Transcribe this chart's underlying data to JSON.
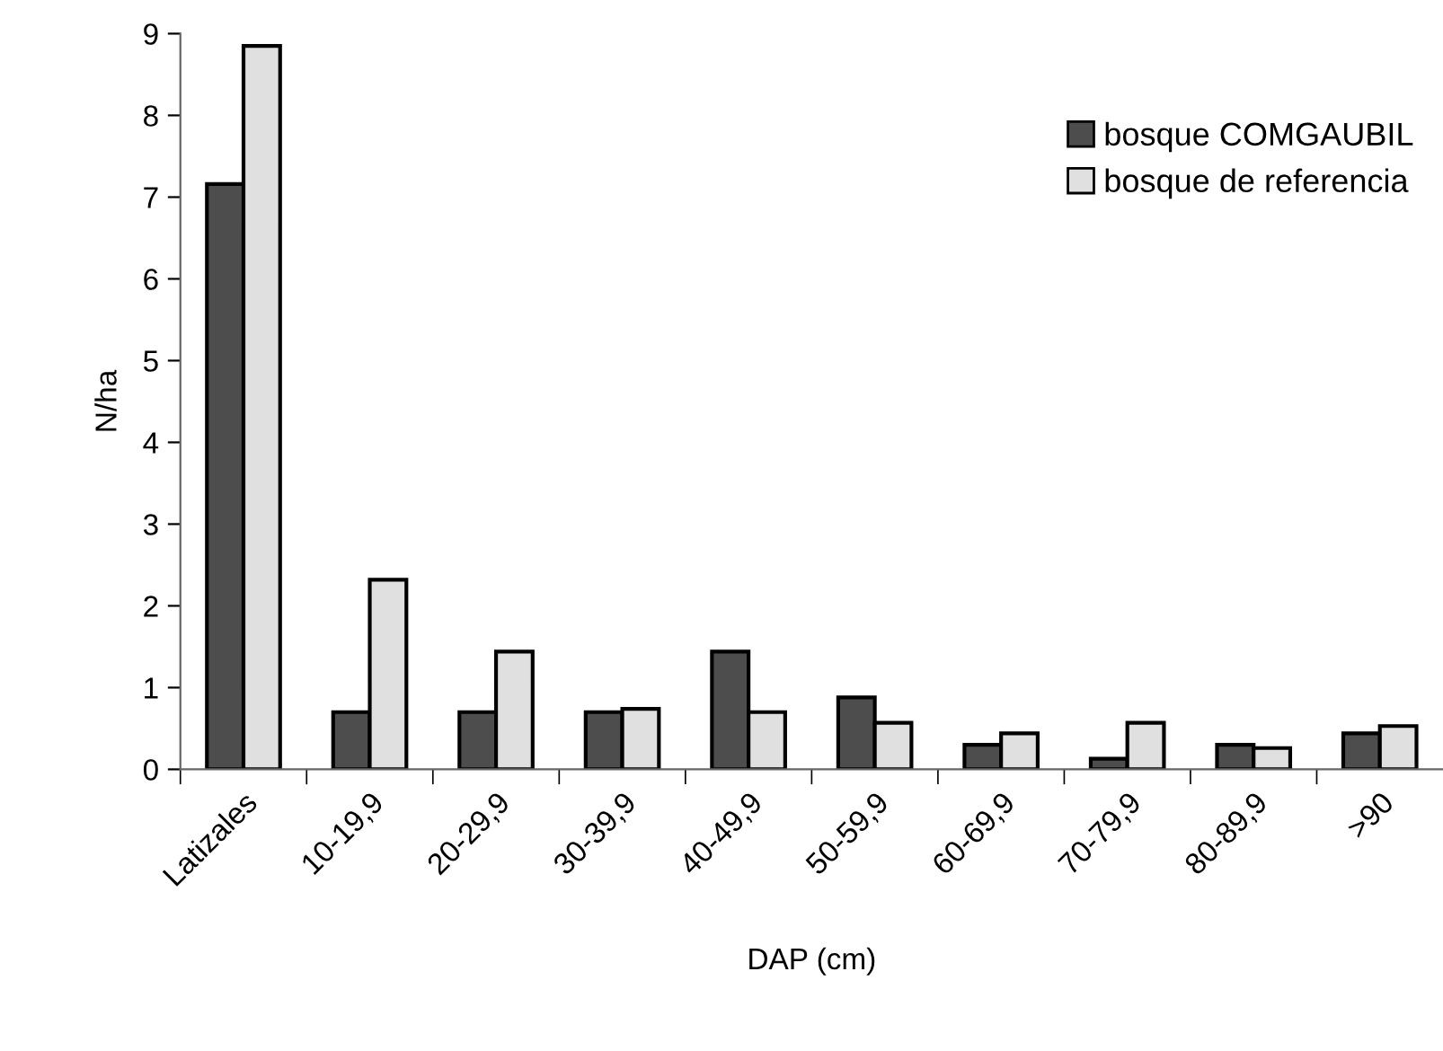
{
  "chart_data": {
    "type": "bar",
    "xlabel": "DAP (cm)",
    "ylabel": "N/ha",
    "categories": [
      "Latizales",
      "10-19,9",
      "20-29,9",
      "30-39,9",
      "40-49,9",
      "50-59,9",
      "60-69,9",
      "70-79,9",
      "80-89,9",
      ">90"
    ],
    "series": [
      {
        "name": "bosque COMGAUBIL",
        "color": "#4d4d4d",
        "values": [
          7.16,
          0.7,
          0.7,
          0.7,
          1.44,
          0.88,
          0.3,
          0.13,
          0.3,
          0.44
        ]
      },
      {
        "name": "bosque de referencia",
        "color": "#e0e0e0",
        "values": [
          8.85,
          2.32,
          1.44,
          0.74,
          0.7,
          0.57,
          0.44,
          0.57,
          0.26,
          0.53
        ]
      }
    ],
    "ylim": [
      0,
      9
    ],
    "yticks": [
      0,
      1,
      2,
      3,
      4,
      5,
      6,
      7,
      8,
      9
    ],
    "grid": false,
    "legend": "top right"
  }
}
